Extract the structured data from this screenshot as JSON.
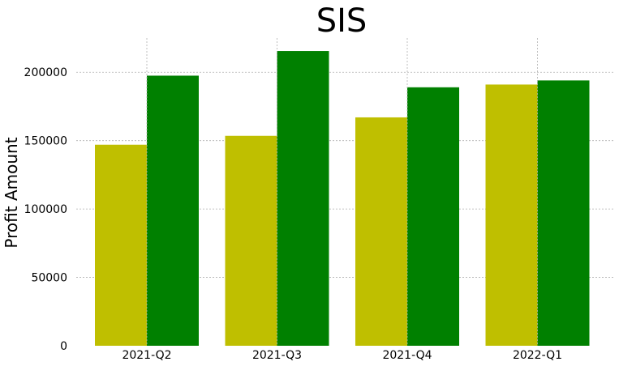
{
  "chart_data": {
    "type": "bar",
    "title": "SIS",
    "xlabel": "",
    "ylabel": "Profit Amount",
    "categories": [
      "2021-Q2",
      "2021-Q3",
      "2021-Q4",
      "2022-Q1"
    ],
    "series": [
      {
        "values": [
          147000,
          153500,
          167000,
          191000
        ],
        "color": "#bfbf00"
      },
      {
        "values": [
          197500,
          215500,
          189000,
          194000
        ],
        "color": "#008000"
      }
    ],
    "ylim": [
      0,
      225000
    ],
    "yticks": [
      0,
      50000,
      100000,
      150000,
      200000
    ],
    "ytick_labels": [
      "0",
      "50000",
      "100000",
      "150000",
      "200000"
    ],
    "grid": true,
    "legend": "none"
  }
}
